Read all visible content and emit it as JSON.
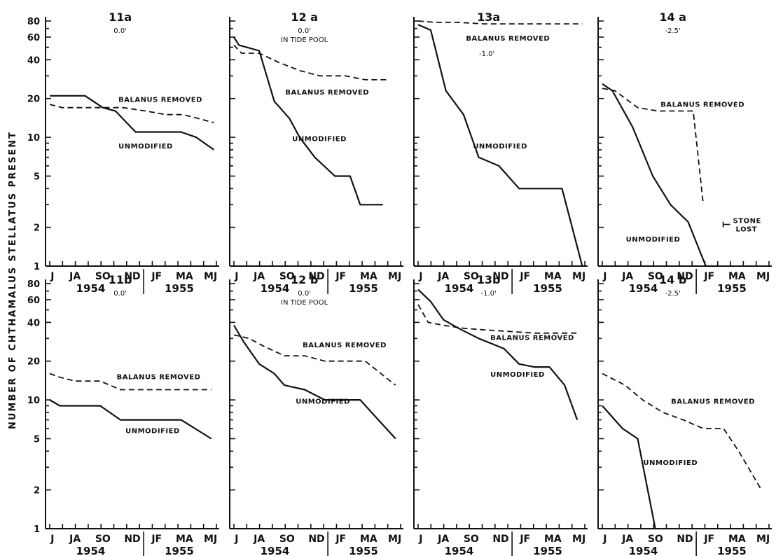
{
  "ylabel": "NUMBER OF CHTHAMALUS STELLATUS PRESENT",
  "month_labels": [
    "J",
    "JA",
    "SO",
    "ND",
    "JF",
    "MA",
    "MJ"
  ],
  "year_labels": [
    "1954",
    "1955"
  ],
  "y_ticks": [
    "80",
    "60",
    "40",
    "20",
    "10",
    "5",
    "2",
    "1"
  ],
  "chart_data": [
    {
      "type": "line",
      "id": "11a",
      "title": "11a",
      "subtitle": "0.0'",
      "subtitle2": "",
      "ylim": [
        1,
        80
      ],
      "yscale": "log",
      "series": [
        {
          "name": "UNMODIFIED",
          "style": "solid",
          "x": [
            0,
            0.9,
            1.4,
            2.1,
            2.6,
            3.4,
            4,
            4.6,
            5.2,
            5.8,
            6.5
          ],
          "y": [
            21,
            21,
            21,
            17,
            16,
            11,
            11,
            11,
            11,
            10,
            8
          ]
        },
        {
          "name": "BALANUS REMOVED",
          "style": "dashed",
          "x": [
            0,
            0.5,
            1.2,
            2,
            2.9,
            3.8,
            4.6,
            5.3,
            6.5
          ],
          "y": [
            18,
            17,
            17,
            17,
            17,
            16,
            15,
            15,
            13
          ]
        }
      ],
      "annotations": []
    },
    {
      "type": "line",
      "id": "12a",
      "title": "12 a",
      "subtitle": "0.0'",
      "subtitle2": "IN TIDE POOL",
      "ylim": [
        1,
        80
      ],
      "yscale": "log",
      "series": [
        {
          "name": "UNMODIFIED",
          "style": "solid",
          "x": [
            0,
            0.2,
            1,
            1.6,
            2.2,
            2.6,
            3.2,
            4,
            4.6,
            5,
            5.9
          ],
          "y": [
            60,
            52,
            47,
            19,
            14,
            10,
            7,
            5,
            5,
            3,
            3
          ]
        },
        {
          "name": "BALANUS REMOVED",
          "style": "dashed",
          "x": [
            0,
            0.3,
            1,
            1.8,
            2.6,
            3.4,
            4.4,
            5.2,
            6.1
          ],
          "y": [
            52,
            45,
            45,
            38,
            33,
            30,
            30,
            28,
            28
          ]
        }
      ],
      "annotations": []
    },
    {
      "type": "line",
      "id": "13a",
      "title": "13a",
      "subtitle": "",
      "subtitle2": "",
      "ylim": [
        1,
        80
      ],
      "yscale": "log",
      "series": [
        {
          "name": "UNMODIFIED",
          "style": "solid",
          "x": [
            0,
            0.5,
            1.1,
            1.8,
            2.4,
            3.2,
            4,
            4.6,
            5.2,
            5.7,
            6.5
          ],
          "y": [
            75,
            68,
            23,
            15,
            7,
            6,
            4,
            4,
            4,
            4,
            1
          ]
        },
        {
          "name": "BALANUS REMOVED",
          "style": "dashed",
          "x": [
            0,
            0.7,
            1.6,
            2.6,
            3.8,
            5,
            6.5
          ],
          "y": [
            80,
            78,
            78,
            76,
            76,
            76,
            76
          ]
        }
      ],
      "annotations": [
        {
          "text": "-1.0'"
        }
      ]
    },
    {
      "type": "line",
      "id": "14a",
      "title": "14 a",
      "subtitle": "-2.5'",
      "subtitle2": "",
      "ylim": [
        1,
        80
      ],
      "yscale": "log",
      "series": [
        {
          "name": "UNMODIFIED",
          "style": "solid",
          "x": [
            0,
            0.4,
            1.2,
            2,
            2.7,
            3.4,
            4.1,
            4.6
          ],
          "y": [
            26,
            23,
            12,
            5,
            3,
            2.2,
            1,
            1
          ]
        },
        {
          "name": "BALANUS REMOVED",
          "style": "dashed",
          "x": [
            0,
            0.5,
            1.4,
            2.2,
            3,
            3.6,
            4
          ],
          "y": [
            24,
            23,
            17,
            16,
            16,
            16,
            3
          ]
        }
      ],
      "annotations": [
        {
          "text": "STONE"
        },
        {
          "text": "LOST"
        }
      ]
    },
    {
      "type": "line",
      "id": "11b",
      "title": "11b",
      "subtitle": "0.0'",
      "subtitle2": "",
      "ylim": [
        1,
        80
      ],
      "yscale": "log",
      "series": [
        {
          "name": "UNMODIFIED",
          "style": "solid",
          "x": [
            0,
            0.4,
            1.2,
            2,
            2.8,
            3.4,
            4,
            4.6,
            5.2,
            6.4
          ],
          "y": [
            10,
            9,
            9,
            9,
            7,
            7,
            7,
            7,
            7,
            5
          ]
        },
        {
          "name": "BALANUS REMOVED",
          "style": "dashed",
          "x": [
            0,
            0.4,
            1,
            2,
            2.8,
            3.4,
            4.6,
            5.6,
            6.4
          ],
          "y": [
            16,
            15,
            14,
            14,
            12,
            12,
            12,
            12,
            12
          ]
        }
      ],
      "annotations": []
    },
    {
      "type": "line",
      "id": "12b",
      "title": "12 b",
      "subtitle": "0.0'",
      "subtitle2": "IN TIDE POOL",
      "ylim": [
        1,
        80
      ],
      "yscale": "log",
      "series": [
        {
          "name": "UNMODIFIED",
          "style": "solid",
          "x": [
            0,
            0.4,
            1,
            1.6,
            2,
            2.8,
            3.6,
            4.4,
            5,
            6.4
          ],
          "y": [
            38,
            28,
            19,
            16,
            13,
            12,
            10,
            10,
            10,
            5
          ]
        },
        {
          "name": "BALANUS REMOVED",
          "style": "dashed",
          "x": [
            0,
            0.6,
            1.2,
            2,
            2.8,
            3.6,
            4.4,
            5.2,
            6.4
          ],
          "y": [
            32,
            30,
            26,
            22,
            22,
            20,
            20,
            20,
            13
          ]
        }
      ],
      "annotations": []
    },
    {
      "type": "line",
      "id": "13b",
      "title": "13b",
      "subtitle": "-1.0'",
      "subtitle2": "",
      "ylim": [
        1,
        80
      ],
      "yscale": "log",
      "series": [
        {
          "name": "UNMODIFIED",
          "style": "solid",
          "x": [
            0,
            0.5,
            1,
            1.6,
            2.4,
            3.4,
            4,
            4.6,
            5.2,
            5.8,
            6.3
          ],
          "y": [
            72,
            58,
            42,
            36,
            30,
            25,
            19,
            18,
            18,
            13,
            7
          ]
        },
        {
          "name": "BALANUS REMOVED",
          "style": "dashed",
          "x": [
            0,
            0.4,
            1,
            1.8,
            2.6,
            3.6,
            4.6,
            5.6,
            6.4
          ],
          "y": [
            55,
            40,
            38,
            36,
            35,
            34,
            33,
            33,
            33
          ]
        }
      ],
      "annotations": []
    },
    {
      "type": "line",
      "id": "14b",
      "title": "14 b",
      "subtitle": "-2.5'",
      "subtitle2": "",
      "ylim": [
        1,
        80
      ],
      "yscale": "log",
      "series": [
        {
          "name": "UNMODIFIED",
          "style": "solid",
          "x": [
            0,
            0.8,
            1.4,
            2.1
          ],
          "y": [
            9,
            6,
            5,
            1
          ]
        },
        {
          "name": "BALANUS REMOVED",
          "style": "dashed",
          "x": [
            0,
            0.9,
            1.6,
            2.4,
            3.2,
            4,
            4.8,
            5.4,
            6.3
          ],
          "y": [
            16,
            13,
            10,
            8,
            7,
            6,
            6,
            4,
            2
          ]
        }
      ],
      "annotations": []
    }
  ]
}
